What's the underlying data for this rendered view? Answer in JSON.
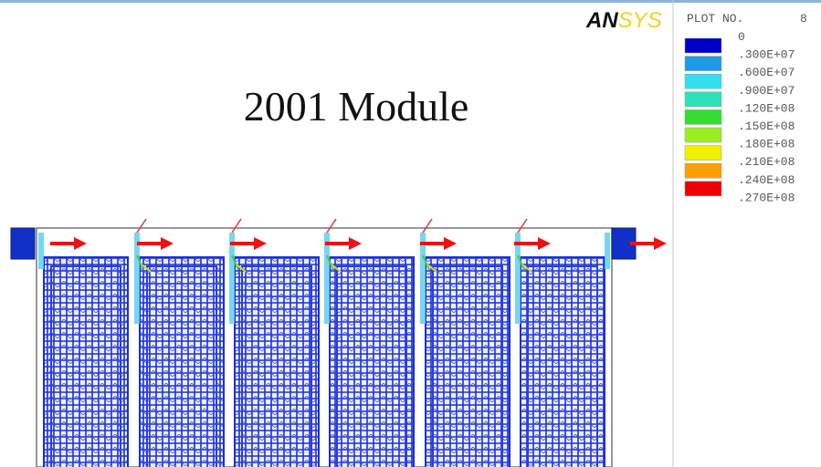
{
  "logo": [
    "AN",
    "SYS"
  ],
  "title": "2001 Module",
  "legend": {
    "heading": "PLOT NO.",
    "plot_number": "8",
    "levels": [
      "0",
      ".300E+07",
      ".600E+07",
      ".900E+07",
      ".120E+08",
      ".150E+08",
      ".180E+08",
      ".210E+08",
      ".240E+08",
      ".270E+08"
    ],
    "colors": [
      "#0000c8",
      "#1e9be8",
      "#33e0f0",
      "#30e0b8",
      "#33dd33",
      "#99ee22",
      "#f0f000",
      "#ff9f00",
      "#ee0000"
    ]
  }
}
